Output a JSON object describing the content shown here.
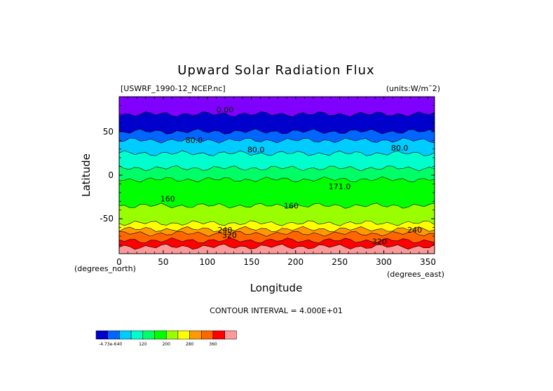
{
  "chart_data": {
    "type": "heatmap",
    "title": "Upward Solar Radiation Flux",
    "dataset_label": "[USWRF_1990-12_NCEP.nc]",
    "units_label": "(units:W/m^2)",
    "xlabel": "Longitude",
    "ylabel": "Latitude",
    "x_units_label": "(degrees_east)",
    "y_units_label": "(degrees_north)",
    "xlim": [
      0,
      357.5
    ],
    "ylim": [
      -90,
      90
    ],
    "x_ticks": [
      "0",
      "50",
      "100",
      "150",
      "200",
      "250",
      "300",
      "350"
    ],
    "x_tick_values": [
      0,
      50,
      100,
      150,
      200,
      250,
      300,
      350
    ],
    "y_ticks": [
      "50",
      "0",
      "-50"
    ],
    "y_tick_values": [
      50,
      0,
      -50
    ],
    "contour_interval_label": "CONTOUR INTERVAL = 4.000E+01",
    "contour_labels": [
      {
        "text": "0.00",
        "lon": 120,
        "lat": 72
      },
      {
        "text": "80.0",
        "lon": 85,
        "lat": 37
      },
      {
        "text": "80.0",
        "lon": 155,
        "lat": 26
      },
      {
        "text": "80.0",
        "lon": 318,
        "lat": 28
      },
      {
        "text": "160",
        "lon": 55,
        "lat": -30
      },
      {
        "text": "160",
        "lon": 195,
        "lat": -38
      },
      {
        "text": "171.0",
        "lon": 250,
        "lat": -16
      },
      {
        "text": "240",
        "lon": 120,
        "lat": -66
      },
      {
        "text": "320",
        "lon": 125,
        "lat": -72
      },
      {
        "text": "240",
        "lon": 335,
        "lat": -66
      },
      {
        "text": "320",
        "lon": 295,
        "lat": -79
      }
    ],
    "latitude_bands": [
      {
        "lat_from": 90,
        "lat_to": 70,
        "value": 0
      },
      {
        "lat_from": 70,
        "lat_to": 50,
        "value": 20
      },
      {
        "lat_from": 50,
        "lat_to": 40,
        "value": 60
      },
      {
        "lat_from": 40,
        "lat_to": 25,
        "value": 90
      },
      {
        "lat_from": 25,
        "lat_to": 8,
        "value": 110
      },
      {
        "lat_from": 8,
        "lat_to": -5,
        "value": 130
      },
      {
        "lat_from": -5,
        "lat_to": -35,
        "value": 150
      },
      {
        "lat_from": -35,
        "lat_to": -55,
        "value": 170
      },
      {
        "lat_from": -55,
        "lat_to": -62,
        "value": 200
      },
      {
        "lat_from": -62,
        "lat_to": -67,
        "value": 250
      },
      {
        "lat_from": -67,
        "lat_to": -75,
        "value": 290
      },
      {
        "lat_from": -75,
        "lat_to": -82,
        "value": 330
      },
      {
        "lat_from": -82,
        "lat_to": -90,
        "value": 370
      }
    ],
    "colorbar": {
      "colors": [
        "#0000cc",
        "#0066ff",
        "#00ccff",
        "#00ffcc",
        "#00ff66",
        "#00ff00",
        "#99ff00",
        "#ffff00",
        "#ff9900",
        "#ff6600",
        "#ff0000",
        "#ff9999"
      ],
      "labels": [
        "-4.73e-6",
        "40",
        "120",
        "200",
        "280",
        "360"
      ],
      "label_after_box": [
        0,
        1,
        3,
        5,
        7,
        9
      ]
    },
    "band_colors": [
      {
        "max": 10,
        "color": "#8000ff"
      },
      {
        "max": 40,
        "color": "#0000cc"
      },
      {
        "max": 80,
        "color": "#0066ff"
      },
      {
        "max": 100,
        "color": "#00ccff"
      },
      {
        "max": 120,
        "color": "#00ffcc"
      },
      {
        "max": 140,
        "color": "#00ff66"
      },
      {
        "max": 160,
        "color": "#00ff00"
      },
      {
        "max": 190,
        "color": "#99ff00"
      },
      {
        "max": 230,
        "color": "#ffff00"
      },
      {
        "max": 270,
        "color": "#ff9900"
      },
      {
        "max": 310,
        "color": "#ff6600"
      },
      {
        "max": 350,
        "color": "#ff0000"
      },
      {
        "max": 9999,
        "color": "#ff9999"
      }
    ]
  }
}
